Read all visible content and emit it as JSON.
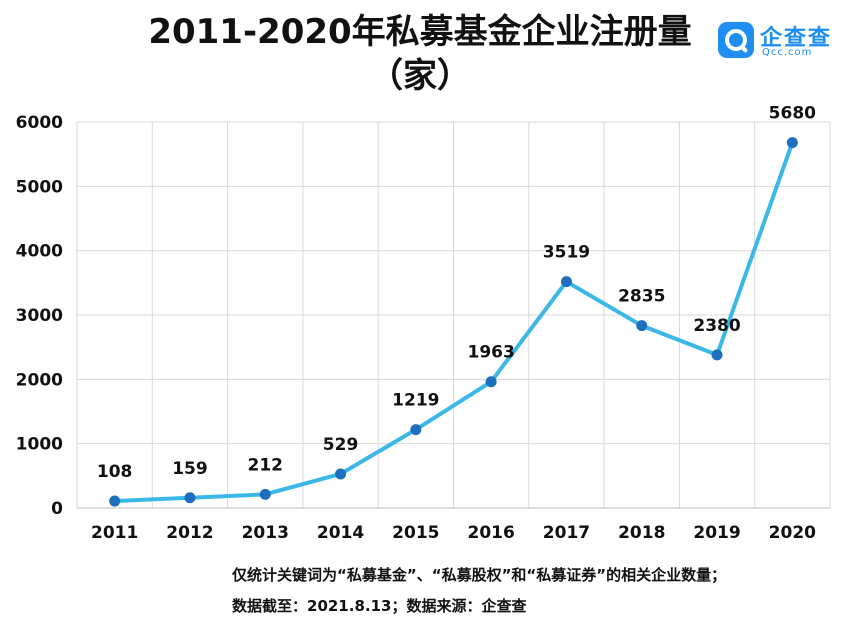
{
  "logo": {
    "name": "企查查",
    "domain": "Qcc.com",
    "icon": "magnifier-logo-icon",
    "color": "#1e8ef2"
  },
  "footnote": {
    "line1": "仅统计关键词为“私募基金”、“私募股权”和“私募证券”的相关企业数量；",
    "line2": "数据截至：2021.8.13；数据来源：企查查"
  },
  "chart_data": {
    "type": "line",
    "title": "2011-2020年私募基金企业注册量",
    "subtitle": "（家）",
    "xlabel": "",
    "ylabel": "",
    "categories": [
      "2011",
      "2012",
      "2013",
      "2014",
      "2015",
      "2016",
      "2017",
      "2018",
      "2019",
      "2020"
    ],
    "series": [
      {
        "values": [
          108,
          159,
          212,
          529,
          1219,
          1963,
          3519,
          2835,
          2380,
          5680
        ],
        "line_color": "#3bb8e8",
        "marker_color": "#1f6fbf"
      }
    ],
    "ylim": [
      0,
      6000
    ],
    "yticks": [
      0,
      1000,
      2000,
      3000,
      4000,
      5000,
      6000
    ],
    "data_labels": true,
    "grid": true
  }
}
